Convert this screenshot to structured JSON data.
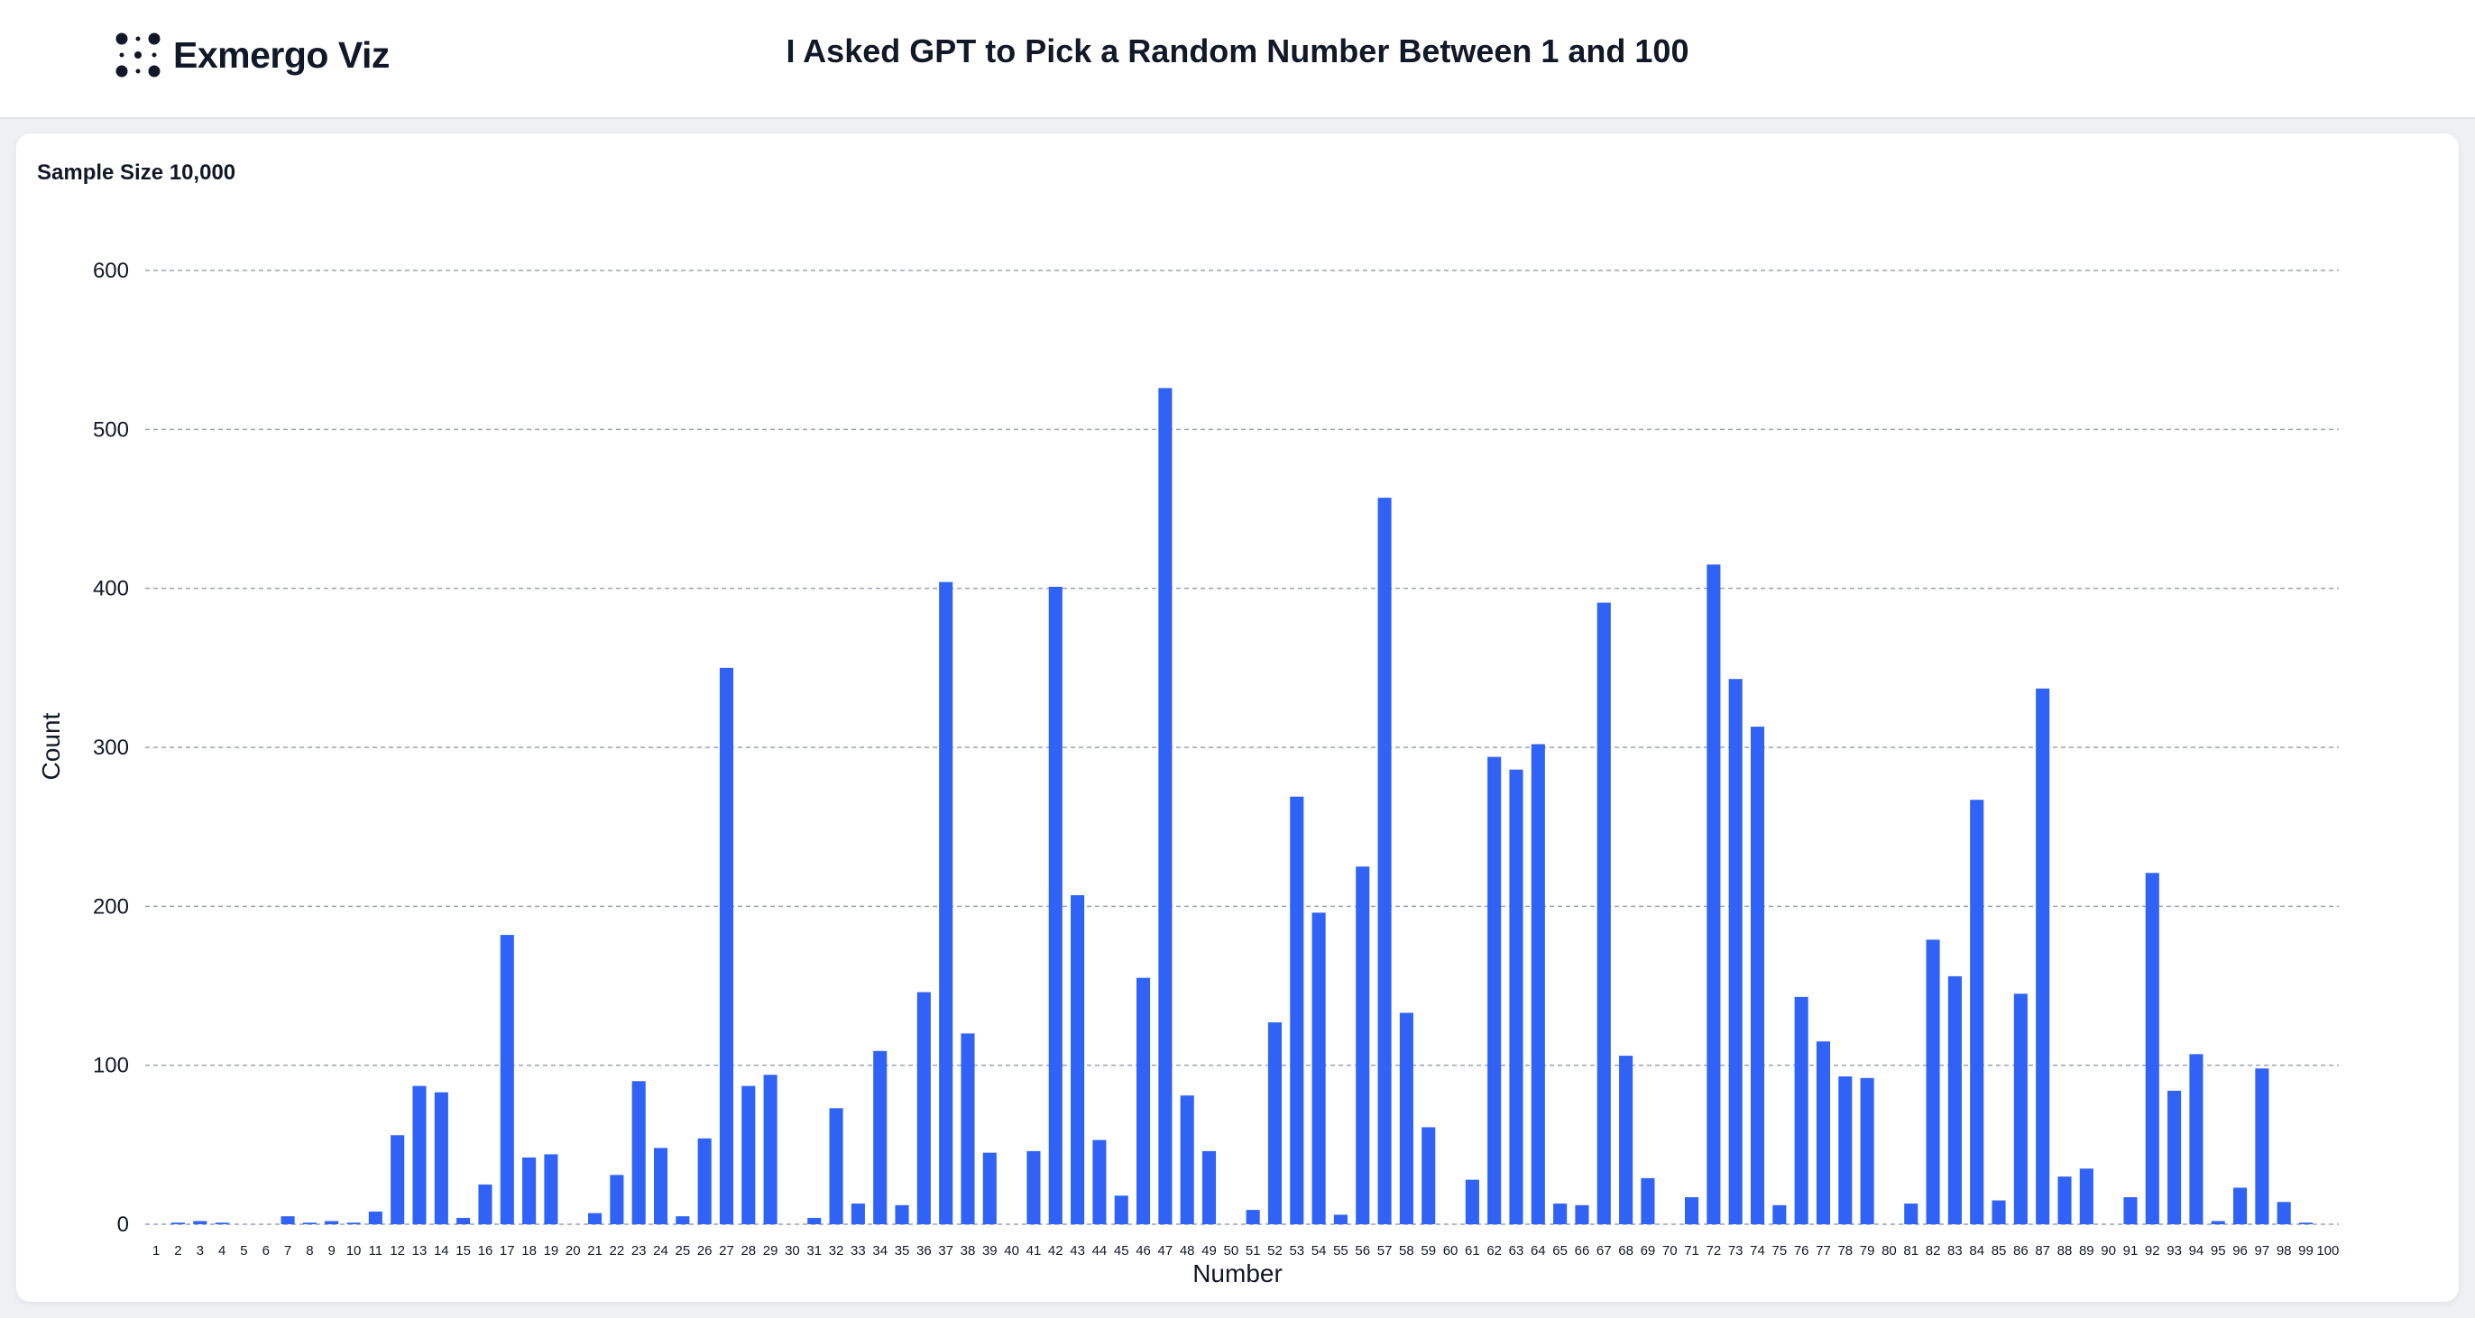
{
  "header": {
    "brand": "Exmergo Viz",
    "title": "I Asked GPT to Pick a Random Number Between 1 and 100"
  },
  "icons": {
    "logo": "dots-logo-icon"
  },
  "colors": {
    "bar": "#2f62f5",
    "grid": "#9ca3af",
    "text": "#111827"
  },
  "chart_data": {
    "type": "bar",
    "title": "Sample Size 10,000",
    "xlabel": "Number",
    "ylabel": "Count",
    "ylim": [
      0,
      600
    ],
    "yticks": [
      0,
      100,
      200,
      300,
      400,
      500,
      600
    ],
    "grid": true,
    "categories": [
      "1",
      "2",
      "3",
      "4",
      "5",
      "6",
      "7",
      "8",
      "9",
      "10",
      "11",
      "12",
      "13",
      "14",
      "15",
      "16",
      "17",
      "18",
      "19",
      "20",
      "21",
      "22",
      "23",
      "24",
      "25",
      "26",
      "27",
      "28",
      "29",
      "30",
      "31",
      "32",
      "33",
      "34",
      "35",
      "36",
      "37",
      "38",
      "39",
      "40",
      "41",
      "42",
      "43",
      "44",
      "45",
      "46",
      "47",
      "48",
      "49",
      "50",
      "51",
      "52",
      "53",
      "54",
      "55",
      "56",
      "57",
      "58",
      "59",
      "60",
      "61",
      "62",
      "63",
      "64",
      "65",
      "66",
      "67",
      "68",
      "69",
      "70",
      "71",
      "72",
      "73",
      "74",
      "75",
      "76",
      "77",
      "78",
      "79",
      "80",
      "81",
      "82",
      "83",
      "84",
      "85",
      "86",
      "87",
      "88",
      "89",
      "90",
      "91",
      "92",
      "93",
      "94",
      "95",
      "96",
      "97",
      "98",
      "99",
      "100"
    ],
    "values": [
      0,
      1,
      2,
      1,
      0,
      0,
      5,
      1,
      2,
      1,
      8,
      56,
      87,
      83,
      4,
      25,
      182,
      42,
      44,
      0,
      7,
      31,
      90,
      48,
      5,
      54,
      350,
      87,
      94,
      0,
      4,
      73,
      13,
      109,
      12,
      146,
      404,
      120,
      45,
      0,
      46,
      401,
      207,
      53,
      18,
      155,
      526,
      81,
      46,
      0,
      9,
      127,
      269,
      196,
      6,
      225,
      457,
      133,
      61,
      0,
      28,
      294,
      286,
      302,
      13,
      12,
      391,
      106,
      29,
      0,
      17,
      415,
      343,
      313,
      12,
      143,
      115,
      93,
      92,
      0,
      13,
      179,
      156,
      267,
      15,
      145,
      337,
      30,
      35,
      0,
      17,
      221,
      84,
      107,
      2,
      23,
      98,
      14,
      1,
      0
    ]
  }
}
